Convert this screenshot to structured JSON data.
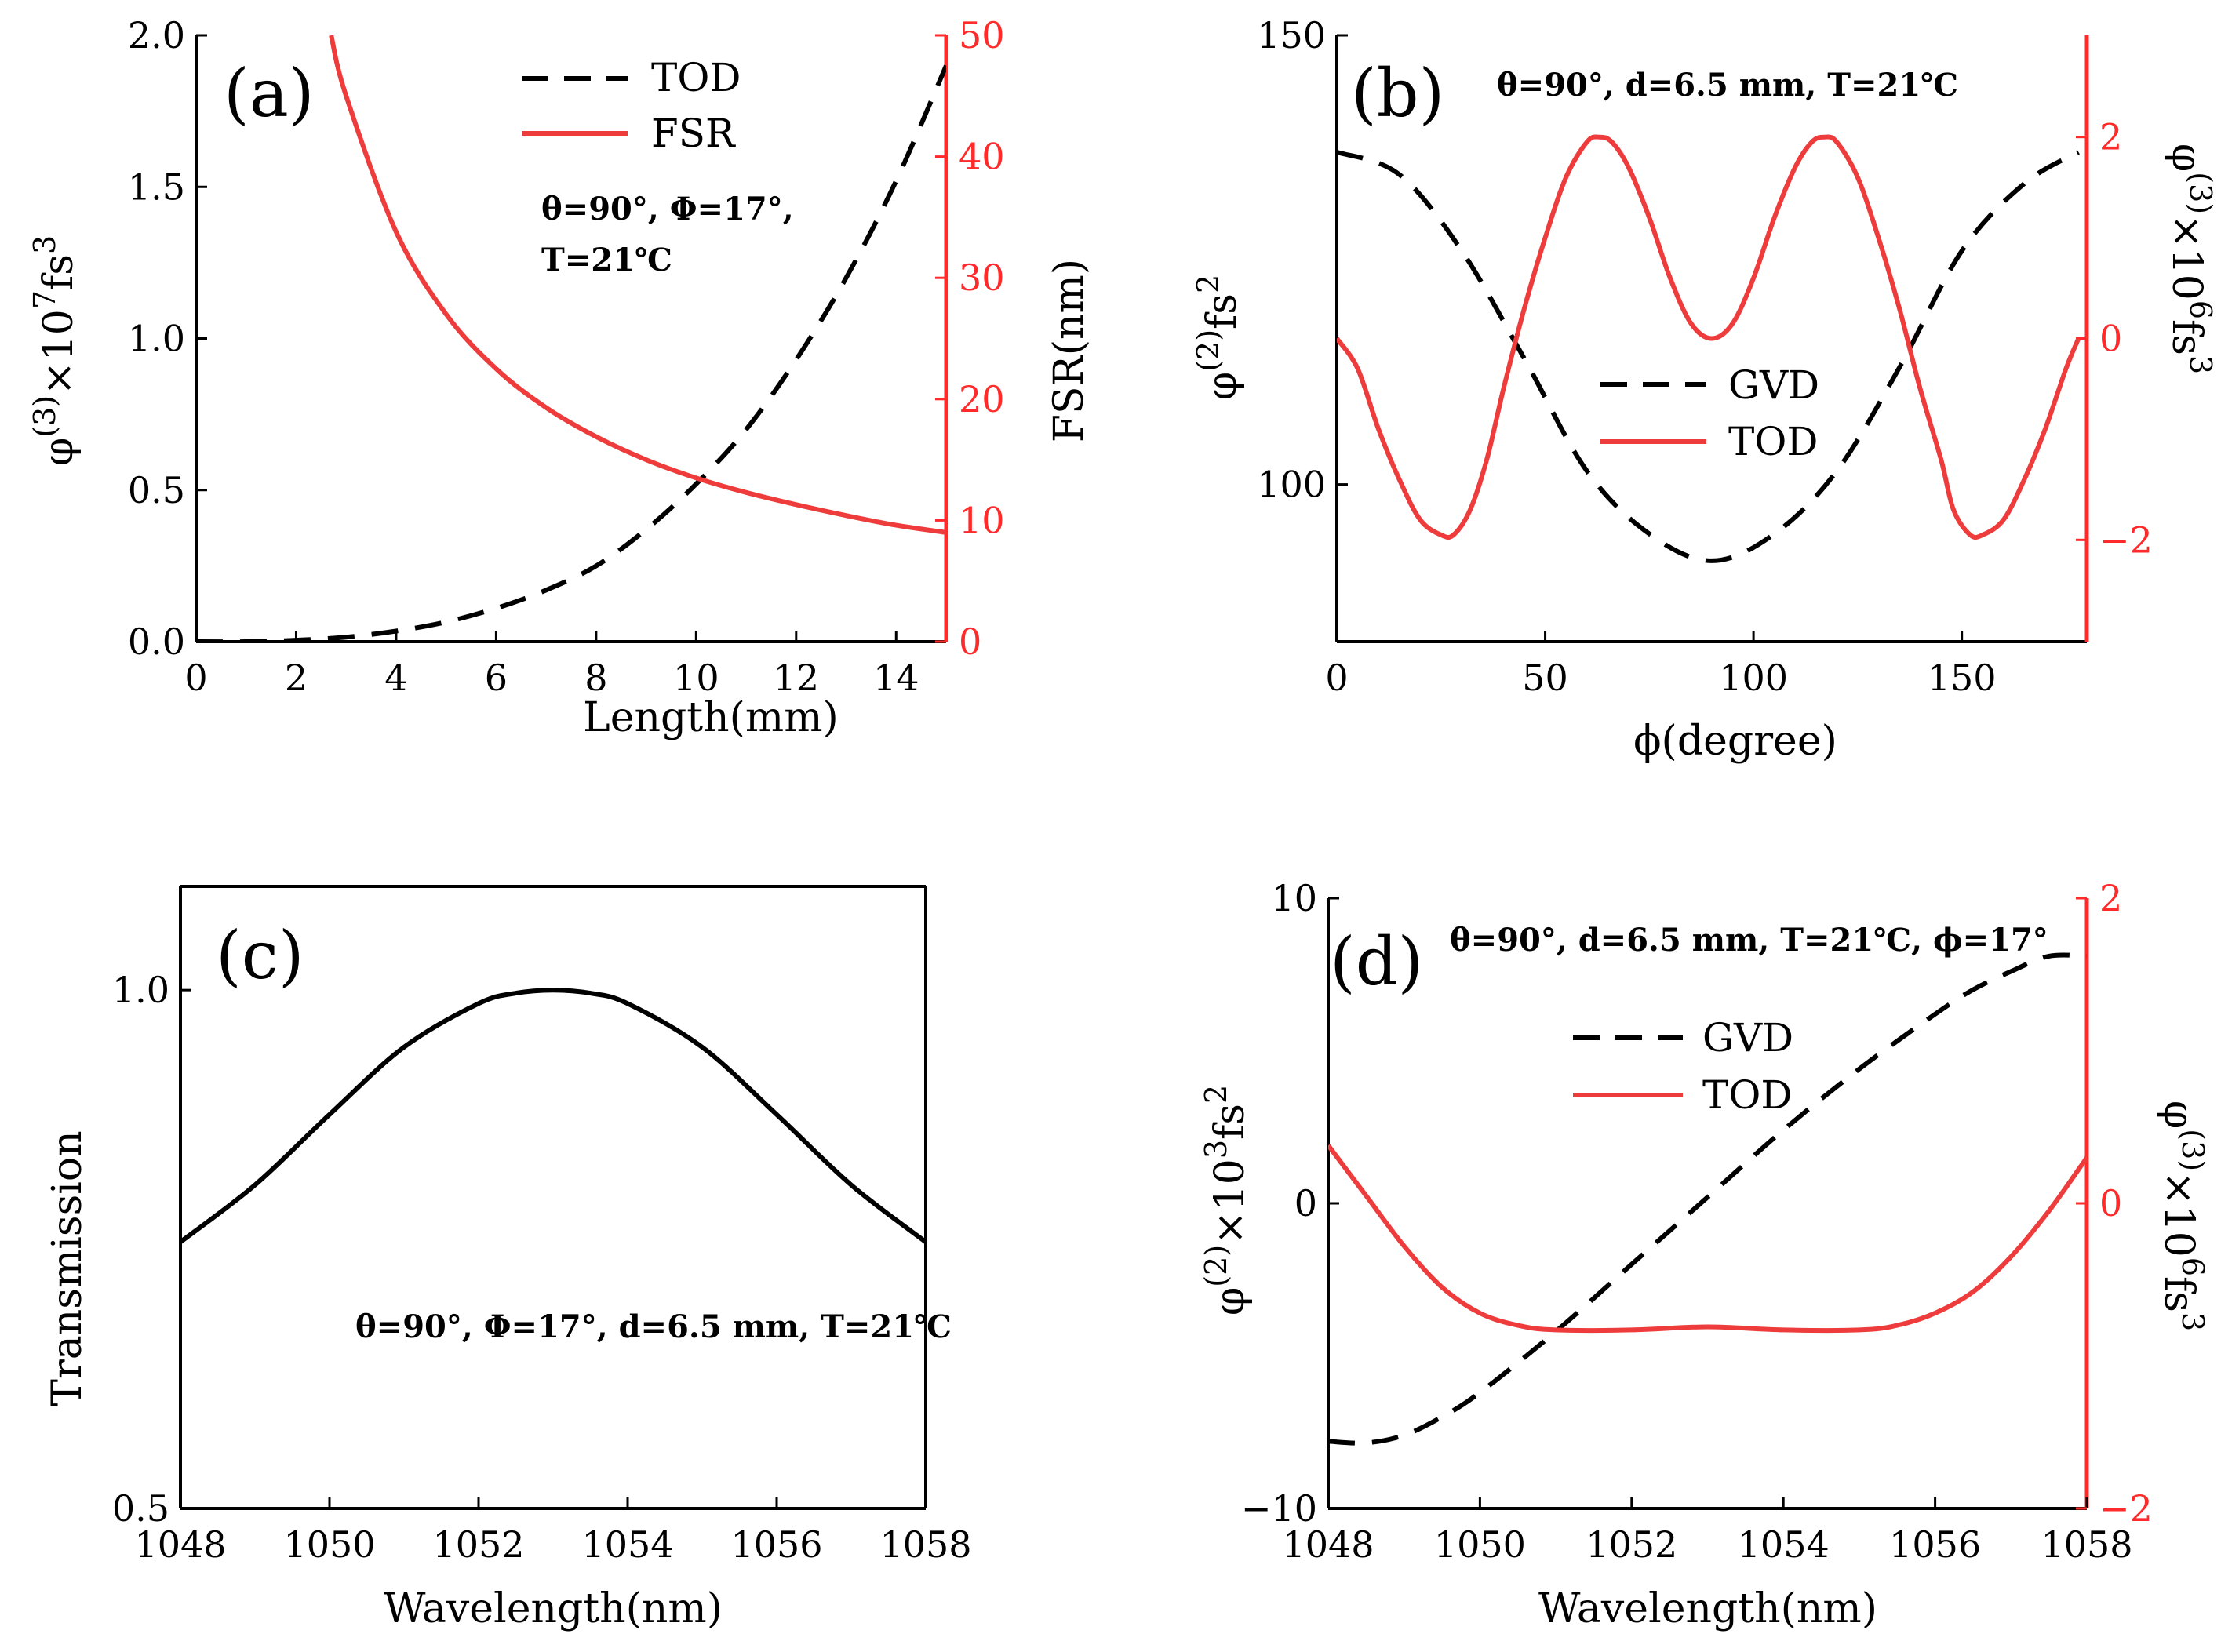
{
  "colors": {
    "black": "#000000",
    "red": "#ee3b3b",
    "axis_red": "#ff2a2a"
  },
  "chart_data": [
    {
      "id": "a",
      "type": "line",
      "panel_label": "(a)",
      "xlabel": "Length(mm)",
      "ylabel_left": {
        "base": "φ",
        "sup1": "(3)",
        "mid": "×10",
        "sup2": "7",
        "unit": "fs",
        "sup3": "3"
      },
      "ylabel_right": "FSR(nm)",
      "xlim": [
        0,
        15
      ],
      "ylim_left": [
        0,
        2
      ],
      "ylim_right": [
        0,
        50
      ],
      "xticks": [
        "0",
        "2",
        "4",
        "6",
        "8",
        "10",
        "12",
        "14"
      ],
      "yticks_left": [
        "0.0",
        "0.5",
        "1.0",
        "1.5",
        "2.0"
      ],
      "yticks_right": [
        "0",
        "10",
        "20",
        "30",
        "40",
        "50"
      ],
      "legend": [
        {
          "label": "TOD",
          "style": "dashed",
          "color": "#000000"
        },
        {
          "label": "FSR",
          "style": "solid",
          "color": "#ee3b3b"
        }
      ],
      "annotation": [
        "θ=90°, Φ=17°,",
        "T=21℃"
      ],
      "series": [
        {
          "name": "TOD",
          "axis": "left",
          "style": "dashed",
          "color": "#000000",
          "x": [
            0,
            1,
            2,
            3,
            4,
            5,
            6,
            7,
            8,
            9,
            10,
            11,
            12,
            13,
            14,
            15
          ],
          "y": [
            0,
            0,
            0.005,
            0.015,
            0.035,
            0.065,
            0.11,
            0.17,
            0.25,
            0.37,
            0.52,
            0.7,
            0.93,
            1.2,
            1.52,
            1.9
          ]
        },
        {
          "name": "FSR",
          "axis": "right",
          "style": "solid",
          "color": "#ee3b3b",
          "x": [
            2.7,
            3,
            4,
            5,
            6,
            7,
            8,
            9,
            10,
            11,
            12,
            13,
            14,
            15
          ],
          "y": [
            50,
            45.0,
            33.8,
            27.0,
            22.5,
            19.3,
            16.9,
            15.0,
            13.5,
            12.3,
            11.3,
            10.4,
            9.6,
            9.0
          ]
        }
      ]
    },
    {
      "id": "b",
      "type": "line",
      "panel_label": "(b)",
      "xlabel": "ϕ(degree)",
      "ylabel_left": {
        "base": "φ",
        "sup1": "(2)",
        "unit": "fs",
        "sup2": "2"
      },
      "ylabel_right": {
        "base": "φ",
        "sup1": "(3)",
        "mid": "×10",
        "sup2": "6",
        "unit": "fs",
        "sup3": "3"
      },
      "xlim": [
        0,
        180
      ],
      "ylim_left": [
        82.5,
        150
      ],
      "ylim_right": [
        -3.01,
        3.01
      ],
      "xticks": [
        "0",
        "50",
        "100",
        "150"
      ],
      "yticks_left": [
        "100",
        "150"
      ],
      "yticks_right": [
        "−2",
        "0",
        "2"
      ],
      "legend": [
        {
          "label": "GVD",
          "style": "dashed",
          "color": "#000000"
        },
        {
          "label": "TOD",
          "style": "solid",
          "color": "#ee3b3b"
        }
      ],
      "annotation": [
        "θ=90°, d=6.5 mm,  T=21℃"
      ],
      "series": [
        {
          "name": "GVD",
          "axis": "left",
          "style": "dashed",
          "color": "#000000",
          "x": [
            0,
            15,
            30,
            45,
            60,
            75,
            90,
            105,
            120,
            135,
            150,
            165,
            178
          ],
          "y": [
            137,
            134.5,
            126,
            114,
            101.5,
            94.5,
            91.5,
            94.5,
            101.5,
            113,
            126,
            133.5,
            137
          ]
        },
        {
          "name": "TOD",
          "axis": "right",
          "style": "solid",
          "color": "#ee3b3b",
          "x": [
            0,
            5,
            10,
            15,
            20,
            25,
            28,
            32,
            36,
            40,
            45,
            50,
            55,
            60,
            63,
            66,
            70,
            75,
            80,
            85,
            90,
            95,
            100,
            105,
            110,
            114,
            117,
            120,
            125,
            130,
            135,
            140,
            145,
            148,
            152,
            155,
            160,
            165,
            170,
            175,
            178
          ],
          "y": [
            0,
            -0.3,
            -0.9,
            -1.4,
            -1.8,
            -1.95,
            -1.95,
            -1.7,
            -1.2,
            -0.5,
            0.3,
            1.0,
            1.6,
            1.95,
            2.0,
            1.95,
            1.7,
            1.2,
            0.6,
            0.15,
            0,
            0.15,
            0.6,
            1.2,
            1.7,
            1.95,
            2.0,
            1.95,
            1.6,
            1.0,
            0.3,
            -0.5,
            -1.2,
            -1.7,
            -1.95,
            -1.95,
            -1.8,
            -1.4,
            -0.9,
            -0.3,
            0
          ]
        }
      ]
    },
    {
      "id": "c",
      "type": "line",
      "panel_label": "(c)",
      "xlabel": "Wavelength(nm)",
      "ylabel": "Transmission",
      "xlim": [
        1048,
        1058
      ],
      "ylim": [
        0.5,
        1.1
      ],
      "xticks": [
        "1048",
        "1050",
        "1052",
        "1054",
        "1056",
        "1058"
      ],
      "yticks": [
        "0.5",
        "1.0"
      ],
      "annotation": [
        "θ=90°, Φ=17°, d=6.5 mm, T=21℃"
      ],
      "series": [
        {
          "name": "",
          "style": "solid",
          "color": "#000000",
          "x": [
            1048,
            1049,
            1050,
            1051,
            1052,
            1052.5,
            1053,
            1053.5,
            1054,
            1055,
            1056,
            1057,
            1058
          ],
          "y": [
            0.757,
            0.812,
            0.88,
            0.945,
            0.987,
            0.997,
            1.0,
            0.997,
            0.987,
            0.945,
            0.88,
            0.812,
            0.757
          ]
        }
      ]
    },
    {
      "id": "d",
      "type": "line",
      "panel_label": "(d)",
      "xlabel": "Wavelength(nm)",
      "ylabel_left": {
        "base": "φ",
        "sup1": "(2)",
        "mid": "×10",
        "sup2": "3",
        "unit": "fs",
        "sup3": "2"
      },
      "ylabel_right": {
        "base": "φ",
        "sup1": "(3)",
        "mid": "×10",
        "sup2": "6",
        "unit": "fs",
        "sup3": "3"
      },
      "xlim": [
        1048,
        1058
      ],
      "ylim_left": [
        -10,
        10
      ],
      "ylim_right": [
        -2,
        2
      ],
      "xticks": [
        "1048",
        "1050",
        "1052",
        "1054",
        "1056",
        "1058"
      ],
      "yticks_left": [
        "−10",
        "0",
        "10"
      ],
      "yticks_right": [
        "−2",
        "0",
        "2"
      ],
      "legend": [
        {
          "label": "GVD",
          "style": "dashed",
          "color": "#000000"
        },
        {
          "label": "TOD",
          "style": "solid",
          "color": "#ee3b3b"
        }
      ],
      "annotation": [
        "θ=90°, d=6.5 mm,  T=21℃, ϕ=17°"
      ],
      "series": [
        {
          "name": "GVD",
          "axis": "left",
          "style": "dashed",
          "color": "#000000",
          "x": [
            1048,
            1048.5,
            1049,
            1049.5,
            1050,
            1051,
            1052,
            1053,
            1054,
            1055,
            1056,
            1056.5,
            1057,
            1057.5,
            1058
          ],
          "y": [
            -7.8,
            -7.85,
            -7.6,
            -7.0,
            -6.2,
            -4.2,
            -2.0,
            0.2,
            2.4,
            4.4,
            6.2,
            7.0,
            7.6,
            8.1,
            8.1
          ]
        },
        {
          "name": "TOD",
          "axis": "right",
          "style": "solid",
          "color": "#ee3b3b",
          "x": [
            1048,
            1048.5,
            1049,
            1049.5,
            1050,
            1050.5,
            1051,
            1052,
            1053,
            1054,
            1055,
            1055.5,
            1056,
            1056.5,
            1057,
            1057.5,
            1058
          ],
          "y": [
            0.38,
            0.05,
            -0.28,
            -0.55,
            -0.72,
            -0.8,
            -0.83,
            -0.83,
            -0.81,
            -0.83,
            -0.83,
            -0.8,
            -0.72,
            -0.58,
            -0.35,
            -0.05,
            0.3
          ]
        }
      ]
    }
  ]
}
